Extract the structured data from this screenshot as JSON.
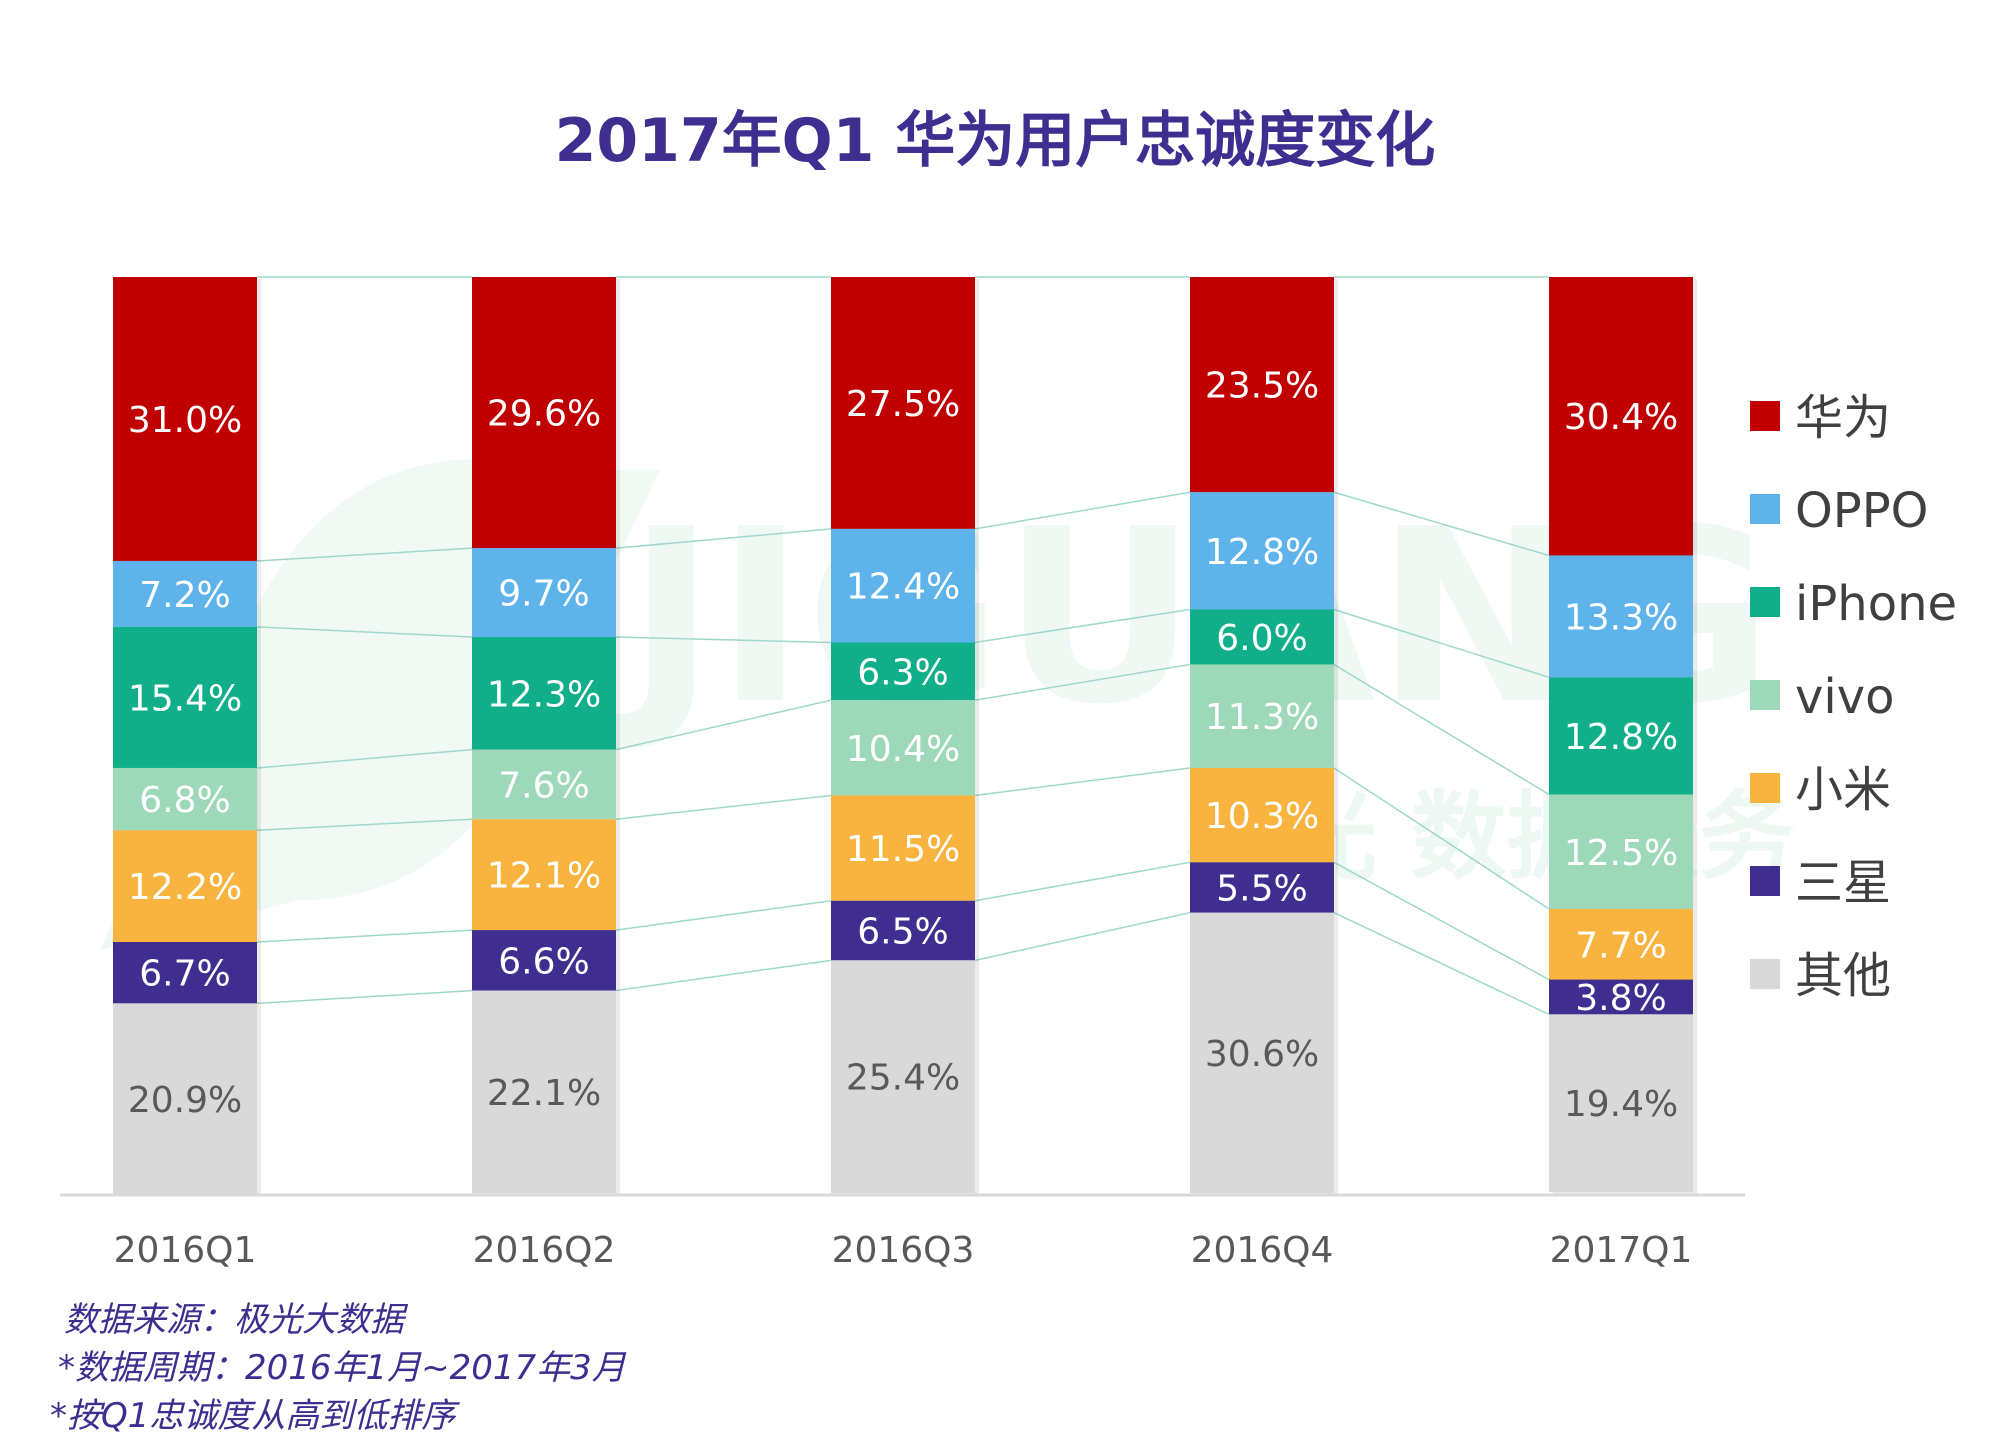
{
  "chart_data": {
    "type": "bar",
    "stacked": true,
    "title": "2017年Q1 华为用户忠诚度变化",
    "categories": [
      "2016Q1",
      "2016Q2",
      "2016Q3",
      "2016Q4",
      "2017Q1"
    ],
    "series": [
      {
        "name": "华为",
        "color": "#c00000",
        "label_color": "#ffffff",
        "values": [
          31.0,
          29.6,
          27.5,
          23.5,
          30.4
        ]
      },
      {
        "name": "OPPO",
        "color": "#5eb4ea",
        "label_color": "#ffffff",
        "values": [
          7.2,
          9.7,
          12.4,
          12.8,
          13.3
        ]
      },
      {
        "name": "iPhone",
        "color": "#11af89",
        "label_color": "#ffffff",
        "values": [
          15.4,
          12.3,
          6.3,
          6.0,
          12.8
        ]
      },
      {
        "name": "vivo",
        "color": "#9dd9b8",
        "label_color": "#ffffff",
        "values": [
          6.8,
          7.6,
          10.4,
          11.3,
          12.5
        ]
      },
      {
        "name": "小米",
        "color": "#f8b43e",
        "label_color": "#ffffff",
        "values": [
          12.2,
          12.1,
          11.5,
          10.3,
          7.7
        ]
      },
      {
        "name": "三星",
        "color": "#3f2d8f",
        "label_color": "#ffffff",
        "values": [
          6.7,
          6.6,
          6.5,
          5.5,
          3.8
        ]
      },
      {
        "name": "其他",
        "color": "#d9d9d9",
        "label_color": "#595959",
        "values": [
          20.9,
          22.1,
          25.4,
          30.6,
          19.4
        ]
      }
    ],
    "value_suffix": "%",
    "ylim": [
      0,
      100
    ],
    "xlabel": "",
    "ylabel": "",
    "legend_position": "right",
    "connector_lines": true
  },
  "watermark": {
    "text": "JIGUANG 极光 数据服务"
  },
  "footnotes": [
    "数据来源：极光大数据",
    "*数据周期：2016年1月~2017年3月",
    "*按Q1忠诚度从高到低排序"
  ],
  "colors": {
    "title": "#3f2d8f",
    "connector": "#9ed8cc",
    "axis": "#d9d9d9"
  }
}
